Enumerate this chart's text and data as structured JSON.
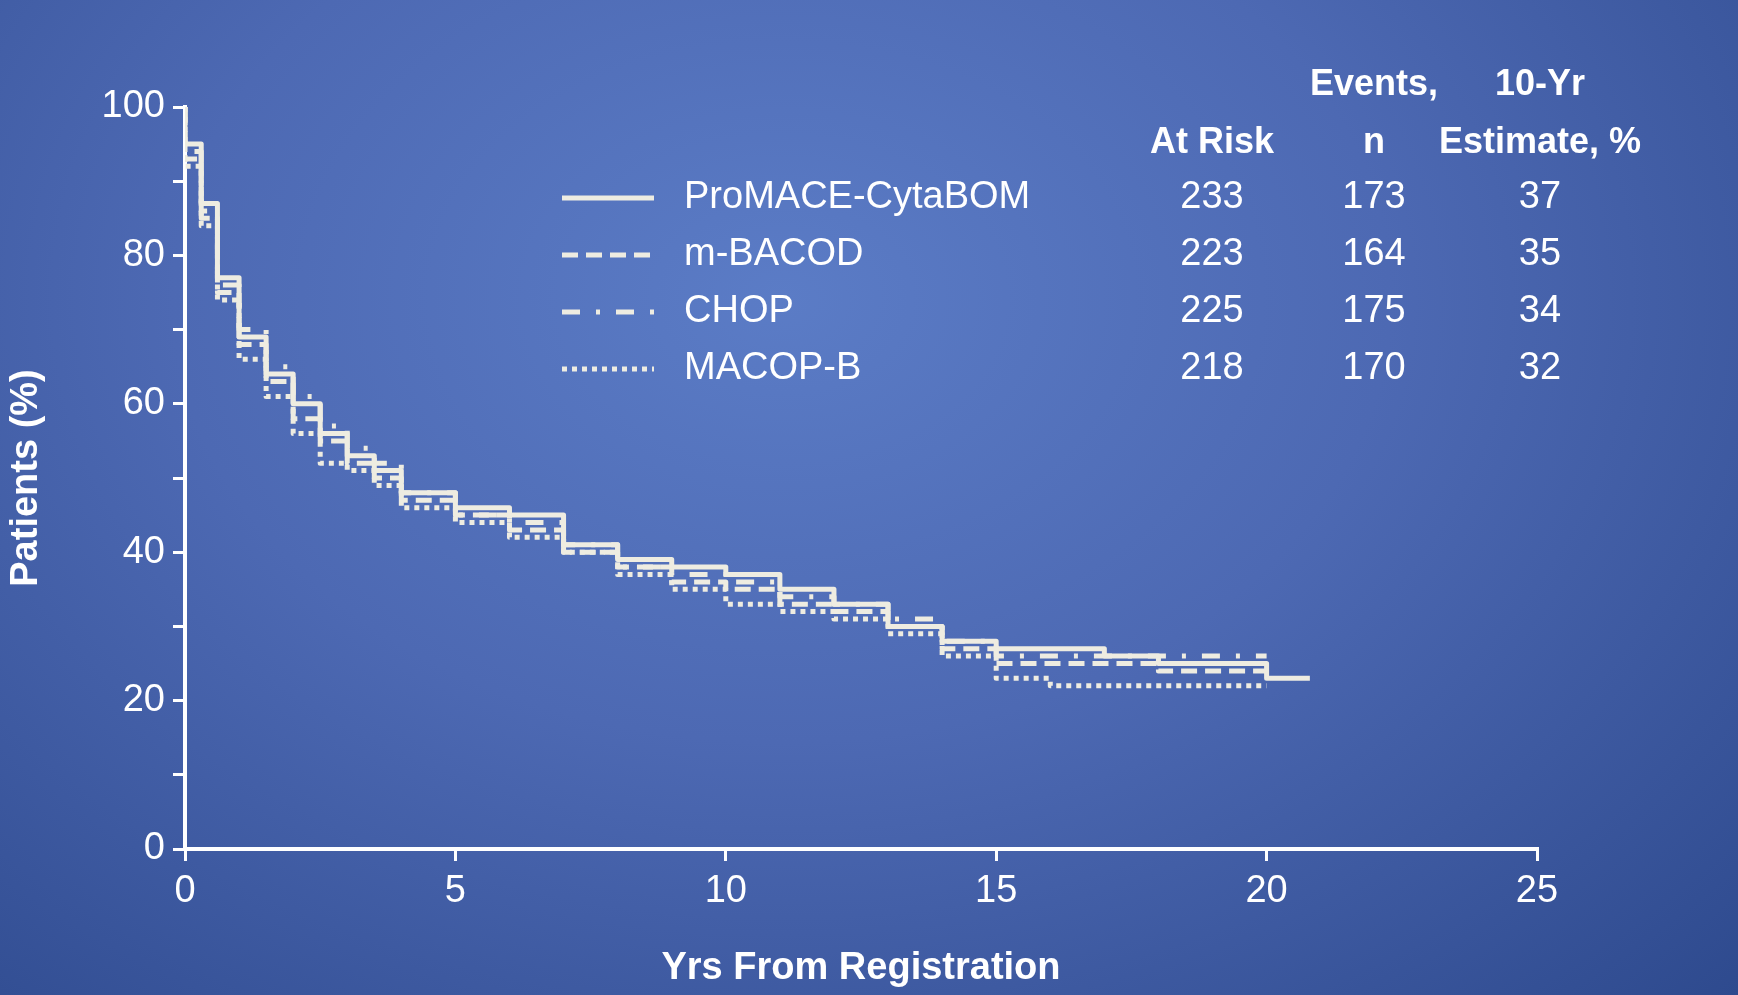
{
  "chart_data": {
    "type": "step",
    "xlabel": "Yrs From Registration",
    "ylabel": "Patients (%)",
    "xlim": [
      0,
      25
    ],
    "xticks": [
      0,
      5,
      10,
      15,
      20,
      25
    ],
    "ylim": [
      0,
      100
    ],
    "yticks": [
      0,
      {
        "value": 10,
        "label": null
      },
      20,
      {
        "value": 30,
        "label": null
      },
      40,
      {
        "value": 50,
        "label": null
      },
      60,
      {
        "value": 70,
        "label": null
      },
      80,
      {
        "value": 90,
        "label": null
      },
      100
    ],
    "legend": "top right",
    "annotations": [
      "At Risk",
      "Events, n",
      "10-Yr Estimate, %",
      "233",
      "173",
      "37",
      "223",
      "164",
      "35",
      "225",
      "175",
      "34",
      "218",
      "170",
      "32"
    ],
    "series": [
      {
        "name": "ProMACE-CytaBOM",
        "color": "#eeece1",
        "line_style": "solid",
        "x": [
          0,
          0.3,
          0.6,
          1,
          1.5,
          2,
          2.5,
          3,
          3.5,
          4,
          5,
          6,
          7,
          8,
          9,
          10,
          11,
          12,
          13,
          14,
          15,
          16,
          17,
          18,
          19,
          20,
          20.8
        ],
        "values": [
          100,
          95,
          87,
          77,
          69,
          64,
          60,
          56,
          53,
          51,
          48,
          46,
          45,
          41,
          39,
          38,
          37,
          35,
          33,
          30,
          28,
          27,
          27,
          26,
          25,
          25,
          23
        ]
      },
      {
        "name": "m-BACOD",
        "color": "#eeece1",
        "line_style": "dashed",
        "x": [
          0,
          0.3,
          0.6,
          1,
          1.5,
          2,
          2.5,
          3,
          3.5,
          4,
          5,
          6,
          7,
          8,
          9,
          10,
          11,
          12,
          13,
          14,
          15,
          16,
          17,
          18,
          19,
          20
        ],
        "values": [
          100,
          93,
          85,
          75,
          68,
          63,
          58,
          55,
          52,
          50,
          47,
          45,
          43,
          40,
          38,
          36,
          35,
          33,
          32,
          30,
          27,
          25,
          25,
          25,
          24,
          24
        ]
      },
      {
        "name": "CHOP",
        "color": "#eeece1",
        "line_style": "dashdot",
        "x": [
          0,
          0.3,
          0.6,
          1,
          1.5,
          2,
          2.5,
          3,
          3.5,
          4,
          5,
          6,
          7,
          8,
          9,
          10,
          11,
          12,
          13,
          14,
          15,
          16,
          17,
          18,
          19,
          20
        ],
        "values": [
          100,
          94,
          86,
          76,
          70,
          65,
          61,
          57,
          54,
          52,
          48,
          45,
          44,
          41,
          38,
          37,
          36,
          34,
          33,
          31,
          28,
          26,
          26,
          26,
          26,
          26
        ]
      },
      {
        "name": "MACOP-B",
        "color": "#eeece1",
        "line_style": "dotted",
        "x": [
          0,
          0.3,
          0.6,
          1,
          1.5,
          2,
          2.5,
          3,
          3.5,
          4,
          5,
          6,
          7,
          8,
          9,
          10,
          11,
          12,
          13,
          14,
          15,
          16,
          17,
          18,
          19,
          20
        ],
        "values": [
          100,
          92,
          84,
          74,
          66,
          61,
          56,
          52,
          51,
          49,
          46,
          44,
          42,
          40,
          37,
          35,
          33,
          32,
          31,
          29,
          26,
          23,
          22,
          22,
          22,
          22
        ]
      }
    ]
  }
}
